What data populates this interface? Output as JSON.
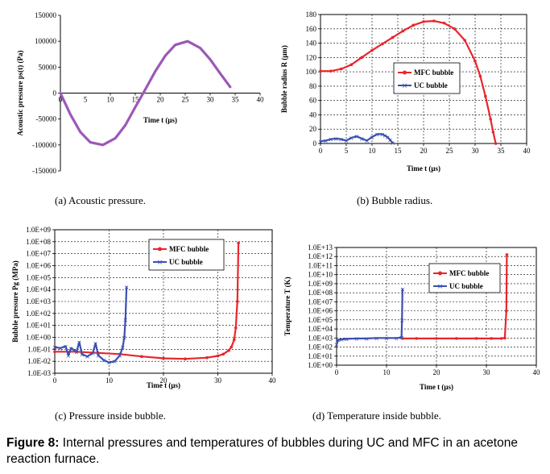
{
  "caption": {
    "label": "Figure 8:",
    "text": "Internal pressures and temperatures of bubbles during UC and MFC in an acetone reaction furnace."
  },
  "colors": {
    "purple": "#9b59b6",
    "red": "#e8262b",
    "blue": "#3a4fb3"
  },
  "chart_data": [
    {
      "id": "a",
      "type": "line",
      "subcaption": "(a) Acoustic pressure.",
      "xlabel": "Time t (μs)",
      "ylabel": "Acoustic pressure ps(t) (Pa)",
      "xlim": [
        0,
        40
      ],
      "ylim": [
        -150000,
        150000
      ],
      "xticks": [
        "0",
        "10",
        "15",
        "20",
        "25",
        "30",
        "35",
        "40"
      ],
      "xtick_values": [
        0,
        10,
        15,
        20,
        25,
        30,
        35,
        40
      ],
      "extra_x_tick_label": {
        "text": "5",
        "value": 5
      },
      "yticks": [
        "-150000",
        "-100000",
        "-50000",
        "0",
        "50000",
        "100000",
        "150000"
      ],
      "ytick_values": [
        -150000,
        -100000,
        -50000,
        0,
        50000,
        100000,
        150000
      ],
      "series": [
        {
          "color": "#9b59b6",
          "x": [
            0,
            2,
            4,
            6,
            8.5,
            11,
            13,
            15,
            17,
            19,
            21,
            23,
            25.5,
            28,
            30,
            32,
            34
          ],
          "y": [
            0,
            -41000,
            -75000,
            -95000,
            -100000,
            -87000,
            -62000,
            -27000,
            7000,
            42000,
            72000,
            93000,
            100000,
            87000,
            65000,
            38000,
            12000
          ]
        }
      ]
    },
    {
      "id": "b",
      "type": "line",
      "subcaption": "(b) Bubble radius.",
      "xlabel": "Time t (μs)",
      "ylabel": "Bubble radius R (μm)",
      "xlim": [
        0,
        40
      ],
      "ylim": [
        0,
        180
      ],
      "xticks": [
        "0",
        "5",
        "10",
        "15",
        "20",
        "25",
        "30",
        "35",
        "40"
      ],
      "xtick_values": [
        0,
        5,
        10,
        15,
        20,
        25,
        30,
        35,
        40
      ],
      "yticks": [
        "0",
        "20",
        "40",
        "60",
        "80",
        "100",
        "120",
        "140",
        "160",
        "180"
      ],
      "ytick_values": [
        0,
        20,
        40,
        60,
        80,
        100,
        120,
        140,
        160,
        180
      ],
      "legend": [
        "MFC bubble",
        "UC bubble"
      ],
      "series": [
        {
          "name": "MFC bubble",
          "color": "#e8262b",
          "x": [
            0,
            2,
            4,
            6,
            8,
            10,
            12,
            14,
            16,
            18,
            20,
            22,
            24,
            26,
            28,
            30,
            31,
            32,
            33,
            33.5,
            34
          ],
          "y": [
            101,
            101,
            104,
            110,
            120,
            130,
            139,
            148,
            157,
            165,
            170,
            171,
            168,
            160,
            144,
            115,
            94,
            66,
            34,
            16,
            0
          ]
        },
        {
          "name": "UC bubble",
          "color": "#3a4fb3",
          "x": [
            0,
            1,
            2,
            3,
            4,
            5,
            6,
            7,
            8,
            9,
            10,
            11,
            12,
            12.5,
            13,
            13.5,
            14
          ],
          "y": [
            3,
            4,
            6,
            7,
            6,
            4,
            8,
            10,
            7,
            4,
            9,
            13,
            13,
            11,
            9,
            5,
            1
          ]
        }
      ]
    },
    {
      "id": "c",
      "type": "line",
      "subcaption": "(c) Pressure inside bubble.",
      "xlabel": "Time t (μs)",
      "ylabel": "Bubble pressure Pg (MPa)",
      "xlim": [
        0,
        40
      ],
      "ylog": true,
      "ylim_exp": [
        -3,
        9
      ],
      "xticks": [
        "0",
        "10",
        "20",
        "30",
        "40"
      ],
      "xtick_values": [
        0,
        10,
        20,
        30,
        40
      ],
      "yticks": [
        "1.0E-03",
        "1.0E-02",
        "1.0E-01",
        "1.0E+00",
        "1.0E+01",
        "1.0E+02",
        "1.0E+03",
        "1.0E+04",
        "1.0E+05",
        "1.0E+06",
        "1.0E+07",
        "1.0E+08",
        "1.0E+09"
      ],
      "ytick_exps": [
        -3,
        -2,
        -1,
        0,
        1,
        2,
        3,
        4,
        5,
        6,
        7,
        8,
        9
      ],
      "legend": [
        "MFC bubble",
        "UC bubble"
      ],
      "series": [
        {
          "name": "MFC bubble",
          "color": "#e8262b",
          "x": [
            0,
            4,
            8,
            12,
            16,
            20,
            24,
            28,
            30,
            31,
            32,
            32.5,
            33,
            33.3,
            33.6,
            33.8
          ],
          "y_exp": [
            -1.2,
            -1.2,
            -1.3,
            -1.4,
            -1.6,
            -1.75,
            -1.8,
            -1.7,
            -1.55,
            -1.4,
            -1.1,
            -0.8,
            -0.2,
            0.8,
            3,
            7.9
          ]
        },
        {
          "name": "UC bubble",
          "color": "#3a4fb3",
          "x": [
            0,
            1,
            2,
            2.5,
            3,
            4,
            4.5,
            5,
            6,
            7,
            7.5,
            8,
            9,
            10,
            11,
            12,
            12.5,
            12.8,
            13,
            13.2
          ],
          "y_exp": [
            -0.8,
            -0.9,
            -0.75,
            -1.5,
            -0.9,
            -1.2,
            -0.4,
            -1.4,
            -1.6,
            -1.3,
            -0.5,
            -1.5,
            -1.9,
            -2.1,
            -2.0,
            -1.5,
            -0.8,
            0,
            1.5,
            4.2
          ]
        }
      ]
    },
    {
      "id": "d",
      "type": "line",
      "subcaption": "(d) Temperature inside bubble.",
      "xlabel": "Time t (μs)",
      "ylabel": "Temperature T (K)",
      "xlim": [
        0,
        40
      ],
      "ylog": true,
      "ylim_exp": [
        0,
        13
      ],
      "xticks": [
        "0",
        "10",
        "20",
        "30",
        "40"
      ],
      "xtick_values": [
        0,
        10,
        20,
        30,
        40
      ],
      "yticks": [
        "1.0E+00",
        "1.0E+01",
        "1.0E+02",
        "1.0E+03",
        "1.0E+04",
        "1.0E+05",
        "1.0E+06",
        "1.0E+07",
        "1.0E+08",
        "1.0E+09",
        "1.0E+10",
        "1.0E+11",
        "1.0E+12",
        "1.0E+13"
      ],
      "ytick_exps": [
        0,
        1,
        2,
        3,
        4,
        5,
        6,
        7,
        8,
        9,
        10,
        11,
        12,
        13
      ],
      "legend": [
        "MFC bubble",
        "UC bubble"
      ],
      "series": [
        {
          "name": "MFC bubble",
          "color": "#e8262b",
          "x": [
            13.2,
            16,
            20,
            24,
            28,
            31,
            33,
            33.7,
            34,
            34.1
          ],
          "y_exp": [
            2.95,
            2.95,
            2.95,
            2.95,
            2.95,
            2.95,
            2.95,
            3,
            6,
            12.2
          ]
        },
        {
          "name": "UC bubble",
          "color": "#3a4fb3",
          "x": [
            0,
            0.3,
            1,
            2,
            4,
            6,
            8,
            10,
            12,
            13,
            13.1,
            13.2
          ],
          "y_exp": [
            2.3,
            2.8,
            2.85,
            2.9,
            2.95,
            2.95,
            3.0,
            3.0,
            3.0,
            3.05,
            5,
            8.4
          ]
        }
      ]
    }
  ]
}
